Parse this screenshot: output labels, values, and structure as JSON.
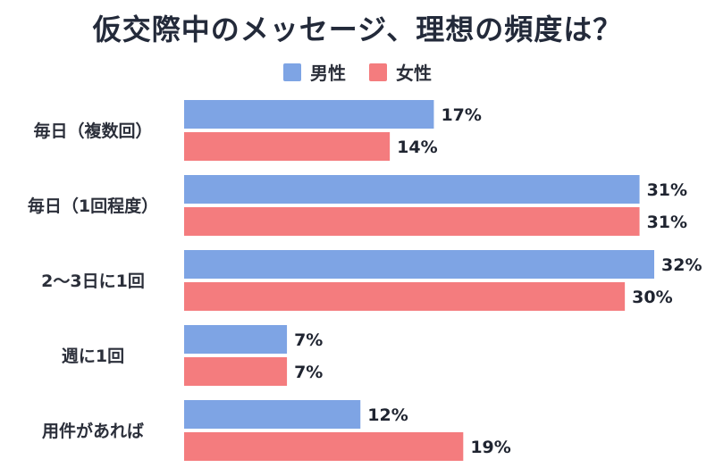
{
  "title": "仮交際中のメッセージ、理想の頻度は？",
  "colors": {
    "male": "#7ea4e4",
    "female": "#f47c7e"
  },
  "legend": {
    "male": "男性",
    "female": "女性"
  },
  "chart_data": {
    "type": "bar",
    "orientation": "horizontal",
    "title": "仮交際中のメッセージ、理想の頻度は？",
    "categories": [
      "毎日（複数回）",
      "毎日（1回程度）",
      "2〜3日に1回",
      "週に1回",
      "用件があれば"
    ],
    "series": [
      {
        "name": "男性",
        "values": [
          17,
          31,
          32,
          7,
          12
        ],
        "labels": [
          "17%",
          "31%",
          "32%",
          "7%",
          "12%"
        ]
      },
      {
        "name": "女性",
        "values": [
          14,
          31,
          30,
          7,
          19
        ],
        "labels": [
          "14%",
          "31%",
          "30%",
          "7%",
          "19%"
        ]
      }
    ],
    "unit": "%",
    "xlim": [
      0,
      32
    ],
    "grid": false,
    "legend_position": "top-center"
  }
}
